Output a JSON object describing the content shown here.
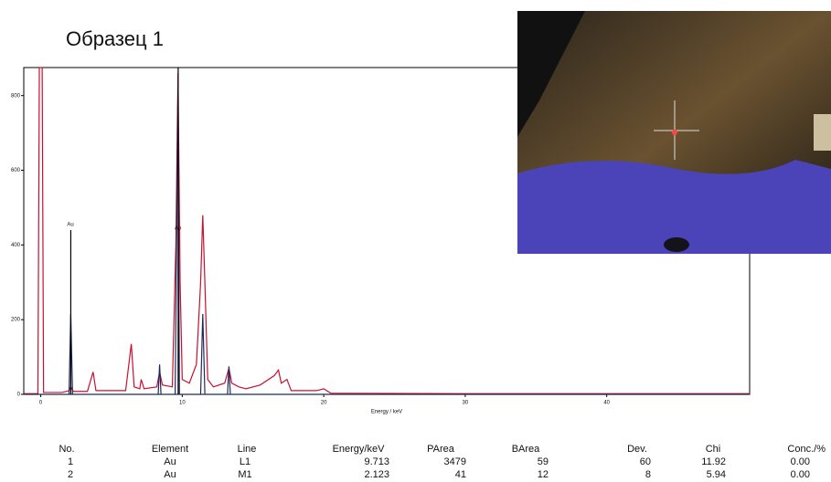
{
  "chart_data": {
    "type": "line",
    "title": "Образец 1",
    "x_label": "Energy / keV",
    "xlim": [
      -1.2,
      50.1
    ],
    "ylim": [
      0,
      875
    ],
    "xticks": [
      0,
      10,
      20,
      30,
      40
    ],
    "yticks": [
      0,
      200,
      400,
      600,
      800
    ],
    "series": [
      {
        "color": "#c8102e",
        "x": [
          -1.2,
          -0.2,
          -0.1,
          0.1,
          0.2,
          1.5,
          2.0,
          2.12,
          2.3,
          3.3,
          3.7,
          3.9,
          6.0,
          6.4,
          6.6,
          7.0,
          7.1,
          7.3,
          8.2,
          8.4,
          8.6,
          9.3,
          9.55,
          9.7,
          9.85,
          10.0,
          10.5,
          11.0,
          11.3,
          11.45,
          11.6,
          11.8,
          12.2,
          13.0,
          13.3,
          13.5,
          14.0,
          14.5,
          15.5,
          16.5,
          16.8,
          17.0,
          17.4,
          17.7,
          19.5,
          20.0,
          20.5,
          30,
          50.1
        ],
        "values": [
          2,
          2,
          875,
          875,
          5,
          5,
          10,
          20,
          8,
          8,
          60,
          10,
          10,
          135,
          20,
          15,
          40,
          15,
          20,
          60,
          25,
          20,
          400,
          860,
          300,
          40,
          30,
          80,
          300,
          480,
          300,
          40,
          20,
          30,
          70,
          30,
          20,
          15,
          25,
          50,
          65,
          30,
          40,
          10,
          10,
          15,
          3,
          2,
          2
        ]
      },
      {
        "color": "#1f2a5c",
        "x": [
          -1.2,
          2.0,
          2.12,
          2.25,
          8.3,
          8.4,
          8.5,
          9.5,
          9.7,
          9.8,
          11.3,
          11.45,
          11.6,
          13.2,
          13.3,
          13.4,
          50.1
        ],
        "values": [
          0,
          0,
          215,
          0,
          0,
          80,
          0,
          0,
          820,
          0,
          0,
          215,
          0,
          0,
          75,
          0,
          0
        ]
      }
    ],
    "markers": [
      {
        "label": "Au",
        "x": 2.123,
        "y": 440
      },
      {
        "label": "Au",
        "x": 9.713,
        "y": 875
      }
    ]
  },
  "table": {
    "header": [
      "No.",
      "Element",
      "Line",
      "Energy/keV",
      "PArea",
      "BArea",
      "Dev.",
      "Chi",
      "Conc./%"
    ],
    "rows": [
      [
        "1",
        "Au",
        "L1",
        "9.713",
        "3479",
        "59",
        "60",
        "11.92",
        "0.00"
      ],
      [
        "2",
        "Au",
        "M1",
        "2.123",
        "41",
        "12",
        "8",
        "5.94",
        "0.00"
      ]
    ]
  }
}
